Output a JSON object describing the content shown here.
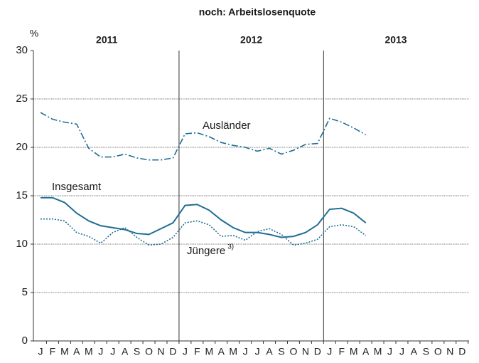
{
  "chart_data": {
    "type": "line",
    "title": "noch: Arbeitslosenquote",
    "y_unit": "%",
    "years": [
      "2011",
      "2012",
      "2013"
    ],
    "categories": [
      "J",
      "F",
      "M",
      "A",
      "M",
      "J",
      "J",
      "A",
      "S",
      "O",
      "N",
      "D",
      "J",
      "F",
      "M",
      "A",
      "M",
      "J",
      "J",
      "A",
      "S",
      "O",
      "N",
      "D",
      "J",
      "F",
      "M",
      "A",
      "M",
      "J",
      "J",
      "A",
      "S",
      "O",
      "N",
      "D"
    ],
    "series": [
      {
        "name": "Ausländer",
        "color": "#1f6e94",
        "dash": "dashdot",
        "values": [
          23.6,
          22.9,
          22.6,
          22.4,
          19.9,
          19.0,
          19.0,
          19.3,
          18.9,
          18.7,
          18.7,
          18.9,
          21.4,
          21.5,
          21.1,
          20.5,
          20.2,
          20.0,
          19.6,
          19.9,
          19.3,
          19.7,
          20.3,
          20.4,
          23.0,
          22.6,
          22.0,
          21.3,
          null,
          null,
          null,
          null,
          null,
          null,
          null,
          null
        ]
      },
      {
        "name": "Insgesamt",
        "color": "#1f6e94",
        "dash": "solid",
        "values": [
          14.8,
          14.8,
          14.3,
          13.2,
          12.4,
          11.9,
          11.7,
          11.5,
          11.1,
          11.0,
          11.6,
          12.2,
          14.0,
          14.1,
          13.5,
          12.5,
          11.7,
          11.2,
          11.2,
          11.0,
          10.7,
          10.8,
          11.2,
          12.0,
          13.6,
          13.7,
          13.2,
          12.2,
          null,
          null,
          null,
          null,
          null,
          null,
          null,
          null
        ]
      },
      {
        "name": "Jüngere",
        "footnote_marker": "3)",
        "color": "#1f6e94",
        "dash": "dotted",
        "values": [
          12.6,
          12.6,
          12.4,
          11.2,
          10.8,
          10.1,
          11.2,
          11.7,
          10.7,
          9.9,
          10.0,
          10.7,
          12.2,
          12.4,
          12.0,
          10.8,
          10.9,
          10.4,
          11.3,
          11.6,
          11.0,
          9.9,
          10.1,
          10.5,
          11.8,
          12.0,
          11.8,
          10.9,
          null,
          null,
          null,
          null,
          null,
          null,
          null,
          null
        ]
      }
    ],
    "ylim": [
      0,
      30
    ],
    "yticks": [
      0,
      5,
      10,
      15,
      20,
      25,
      30
    ],
    "grid": true
  }
}
